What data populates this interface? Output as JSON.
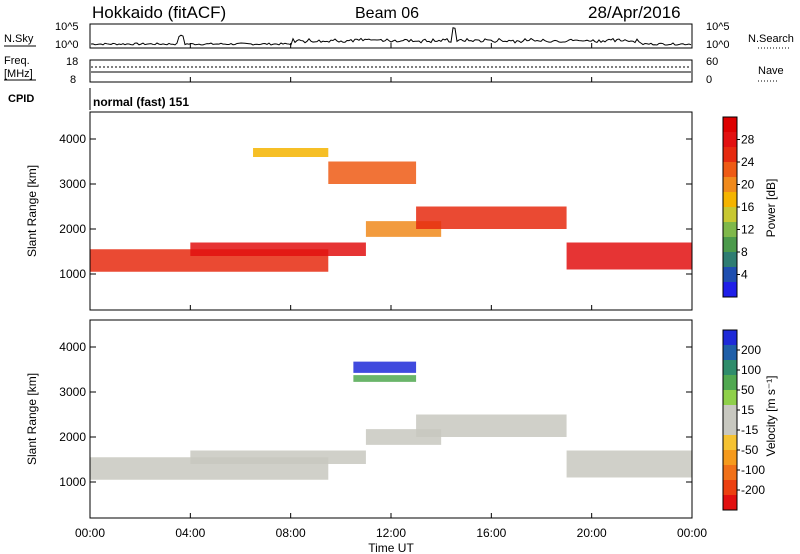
{
  "header": {
    "radar": "Hokkaido (fitACF)",
    "beam": "Beam 06",
    "date": "28/Apr/2016"
  },
  "top_panels": {
    "nsky": {
      "label": "N.Sky",
      "right_label": "N.Search",
      "ticks_left": [
        "10^5",
        "10^0"
      ],
      "ticks_right": [
        "10^5",
        "10^0"
      ]
    },
    "freq": {
      "label_line1": "Freq.",
      "label_line2": "[MHz]",
      "ticks_left": [
        "18",
        "8"
      ],
      "ticks_right": [
        "60",
        "0"
      ],
      "right_label": "Nave"
    },
    "cpid": {
      "label": "CPID",
      "mode_text": "normal (fast) 151"
    }
  },
  "axes": {
    "xlabel": "Time UT",
    "xticks": [
      "00:00",
      "04:00",
      "08:00",
      "12:00",
      "16:00",
      "20:00",
      "00:00"
    ],
    "ylabel": "Slant Range [km]",
    "yticks": [
      "1000",
      "2000",
      "3000",
      "4000"
    ],
    "ylim": [
      200,
      4600
    ],
    "xlim_hours": [
      0,
      24
    ]
  },
  "colorbars": {
    "power": {
      "label": "Power [dB]",
      "ticks": [
        "4",
        "8",
        "12",
        "16",
        "20",
        "24",
        "28"
      ],
      "colors": [
        "#1f1fe8",
        "#1f4fb0",
        "#2e7d72",
        "#4b9a4b",
        "#7fb84a",
        "#c8c832",
        "#f5b400",
        "#f08a1c",
        "#ee5a14",
        "#e62a0f",
        "#e21010",
        "#dd0000"
      ]
    },
    "velocity": {
      "label": "Velocity [m s⁻¹]",
      "ticks": [
        "200",
        "100",
        "50",
        "15",
        "-15",
        "-50",
        "-100",
        "-200"
      ],
      "colors": [
        "#1e2ad8",
        "#1f5fa8",
        "#2f8c6b",
        "#50a850",
        "#8fd04a",
        "#c8c8c0",
        "#c8c8c0",
        "#f5c232",
        "#f59a1c",
        "#f07018",
        "#ec4010",
        "#e21010"
      ]
    }
  },
  "chart_data": [
    {
      "type": "heatmap",
      "title": "Power [dB]",
      "x_hours": [
        0,
        24
      ],
      "y_km": [
        200,
        4600
      ],
      "bands": [
        {
          "t_start": 0,
          "t_end": 9.5,
          "r_center": 1300,
          "r_width": 500,
          "value_db": 24
        },
        {
          "t_start": 4,
          "t_end": 11,
          "r_center": 1550,
          "r_width": 300,
          "value_db": 28
        },
        {
          "t_start": 6.5,
          "t_end": 9.5,
          "r_center": 3700,
          "r_width": 200,
          "value_db": 18
        },
        {
          "t_start": 9.5,
          "t_end": 13,
          "r_center": 3250,
          "r_width": 500,
          "value_db": 22
        },
        {
          "t_start": 11,
          "t_end": 14,
          "r_center": 2000,
          "r_width": 350,
          "value_db": 20
        },
        {
          "t_start": 13,
          "t_end": 19,
          "r_center": 2250,
          "r_width": 500,
          "value_db": 24
        },
        {
          "t_start": 19,
          "t_end": 24,
          "r_center": 1400,
          "r_width": 600,
          "value_db": 26
        }
      ]
    },
    {
      "type": "heatmap",
      "title": "Velocity [m s⁻¹]",
      "x_hours": [
        0,
        24
      ],
      "y_km": [
        200,
        4600
      ],
      "bands": [
        {
          "t_start": 0,
          "t_end": 9.5,
          "r_center": 1300,
          "r_width": 500,
          "value_ms": 0
        },
        {
          "t_start": 4,
          "t_end": 11,
          "r_center": 1550,
          "r_width": 300,
          "value_ms": 0
        },
        {
          "t_start": 10.5,
          "t_end": 13,
          "r_center": 3550,
          "r_width": 250,
          "value_ms": 200
        },
        {
          "t_start": 10.5,
          "t_end": 13,
          "r_center": 3300,
          "r_width": 150,
          "value_ms": 50
        },
        {
          "t_start": 11,
          "t_end": 14,
          "r_center": 2000,
          "r_width": 350,
          "value_ms": 0
        },
        {
          "t_start": 13,
          "t_end": 19,
          "r_center": 2250,
          "r_width": 500,
          "value_ms": 0
        },
        {
          "t_start": 19,
          "t_end": 24,
          "r_center": 1400,
          "r_width": 600,
          "value_ms": 0
        }
      ]
    }
  ]
}
